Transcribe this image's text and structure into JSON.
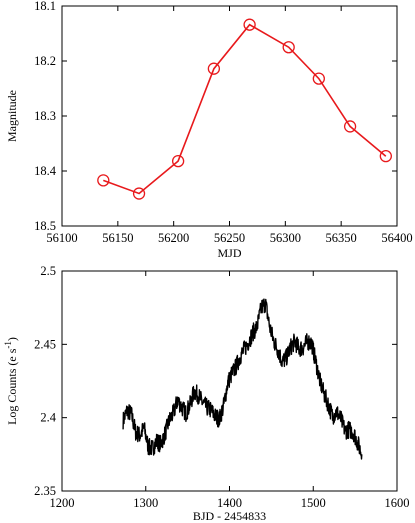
{
  "chart_data": [
    {
      "type": "line",
      "title": "",
      "xlabel": "MJD",
      "ylabel": "Magnitude",
      "xlim": [
        56100,
        56400
      ],
      "ylim": [
        18.5,
        18.1
      ],
      "y_inverted": true,
      "x_ticks": [
        56100,
        56150,
        56200,
        56250,
        56300,
        56350,
        56400
      ],
      "x_tick_labels": [
        "56100",
        "56150",
        "56200",
        "56250",
        "56300",
        "56350",
        "56400"
      ],
      "y_ticks": [
        18.1,
        18.2,
        18.3,
        18.4,
        18.5
      ],
      "y_tick_labels": [
        "18.1",
        "18.2",
        "18.3",
        "18.4",
        "18.5"
      ],
      "marker": "open-circle",
      "color": "#e8191c",
      "series": [
        {
          "x": [
            56137,
            56169,
            56204,
            56236,
            56268,
            56303,
            56330,
            56358,
            56390
          ],
          "y": [
            18.417,
            18.441,
            18.382,
            18.214,
            18.134,
            18.175,
            18.232,
            18.319,
            18.373
          ]
        }
      ],
      "grid": false
    },
    {
      "type": "line",
      "title": "",
      "xlabel": "BJD - 2454833",
      "ylabel": "Log Counts (e",
      "ylabel_unit": "s",
      "ylabel_exponent": "-1",
      "ylabel_close": ")",
      "xlim": [
        1200,
        1600
      ],
      "ylim": [
        2.35,
        2.5
      ],
      "x_ticks": [
        1200,
        1300,
        1400,
        1500,
        1600
      ],
      "x_tick_labels": [
        "1200",
        "1300",
        "1400",
        "1500",
        "1600"
      ],
      "y_ticks": [
        2.35,
        2.4,
        2.45,
        2.5
      ],
      "y_tick_labels": [
        "2.35",
        "2.4",
        "2.45",
        "2.5"
      ],
      "color": "#000000",
      "series": [
        {
          "x": [
            1273,
            1278,
            1283,
            1288,
            1293,
            1298,
            1303,
            1308,
            1313,
            1318,
            1323,
            1328,
            1333,
            1338,
            1343,
            1348,
            1353,
            1358,
            1363,
            1368,
            1373,
            1378,
            1383,
            1388,
            1393,
            1398,
            1403,
            1408,
            1413,
            1418,
            1423,
            1428,
            1433,
            1438,
            1443,
            1448,
            1453,
            1458,
            1463,
            1468,
            1473,
            1478,
            1483,
            1488,
            1493,
            1498,
            1503,
            1508,
            1513,
            1518,
            1523,
            1528,
            1533,
            1538,
            1543,
            1548,
            1553,
            1558
          ],
          "y": [
            2.398,
            2.405,
            2.402,
            2.39,
            2.388,
            2.393,
            2.38,
            2.379,
            2.384,
            2.382,
            2.389,
            2.398,
            2.403,
            2.412,
            2.407,
            2.403,
            2.409,
            2.418,
            2.415,
            2.41,
            2.407,
            2.405,
            2.401,
            2.399,
            2.408,
            2.424,
            2.43,
            2.435,
            2.442,
            2.447,
            2.452,
            2.458,
            2.462,
            2.475,
            2.478,
            2.462,
            2.452,
            2.446,
            2.438,
            2.441,
            2.448,
            2.452,
            2.447,
            2.448,
            2.452,
            2.451,
            2.438,
            2.425,
            2.416,
            2.409,
            2.401,
            2.404,
            2.399,
            2.391,
            2.392,
            2.39,
            2.383,
            2.375
          ],
          "noise_amplitude": 0.006
        }
      ],
      "grid": false
    }
  ]
}
